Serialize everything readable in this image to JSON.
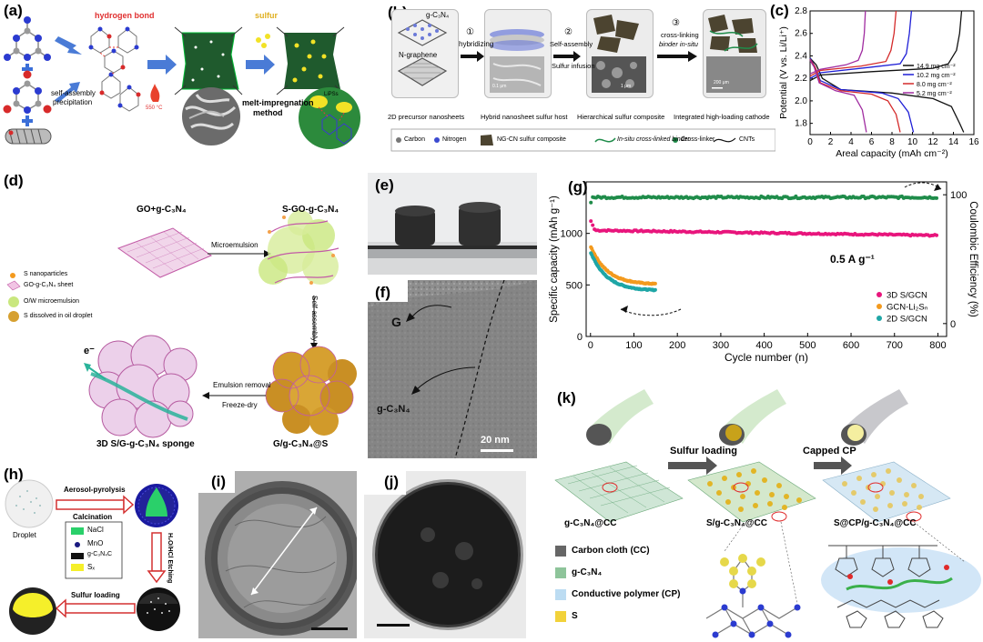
{
  "panels": {
    "a": {
      "label": "(a)",
      "hydrogen_bond": "hydrogen bond",
      "sulfur": "sulfur",
      "self_assembly": "self-assembly",
      "precipitation": "precipitation",
      "temp": "550 °C",
      "melt_impregnation": "melt-impregnation",
      "method": "method",
      "lips": "LiPSs"
    },
    "b": {
      "label": "(b)",
      "gcn": "g-C₃N₄",
      "ngraphene": "N-graphene",
      "step1_num": "①",
      "step1": "hybridizing",
      "step2_num": "②",
      "step2a": "Self-assembly",
      "step2b": "Sulfur infusion",
      "step3_num": "③",
      "step3a": "cross-linking",
      "step3b": "binder in-situ",
      "cap1": "2D precursor nanosheets",
      "cap2": "Hybrid nanosheet sulfur host",
      "cap3": "Hierarchical sulfur composite",
      "cap4": "Integrated high-loading cathode",
      "scale1": "0.1 μm",
      "scale3": "1 μm",
      "scale4": "200 μm",
      "legend": [
        "Carbon",
        "Nitrogen",
        "NG-CN sulfur composite",
        "In-situ cross-linked binder",
        "Cross-linker",
        "CNTs"
      ]
    },
    "d": {
      "label": "(d)",
      "go_gcn": "GO+g-C₃N₄",
      "s_go_gcn": "S-GO-g-C₃N₄",
      "microemulsion": "Microemulsion",
      "self_assembly": "Self-assembly",
      "emulsion_removal": "Emulsion removal",
      "freeze_dry": "Freeze-dry",
      "sponge": "3D S/G-g-C₃N₄ sponge",
      "ggcn_s": "G/g-C₃N₄@S",
      "electron": "e⁻",
      "legend": [
        "S nanoparticles",
        "GO-g-C₃N₄ sheet",
        "O/W microemulsion",
        "S dissolved in oil droplet"
      ]
    },
    "e": {
      "label": "(e)"
    },
    "f": {
      "label": "(f)",
      "g": "G",
      "gcn": "g-C₃N₄",
      "scale": "20 nm"
    },
    "h": {
      "label": "(h)",
      "aerosol": "Aerosol-pyrolysis",
      "calcination": "Calcination",
      "droplet": "Droplet",
      "etching": "H₂O/HCl Etching",
      "sulfur_loading": "Sulfur loading",
      "legend": [
        "NaCl",
        "MnO",
        "g-C₃N₄C",
        "Sₓ"
      ]
    },
    "i": {
      "label": "(i)"
    },
    "j": {
      "label": "(j)"
    },
    "k": {
      "label": "(k)",
      "sulfur_loading": "Sulfur loading",
      "capped_cp": "Capped CP",
      "gcn_cc": "g-C₃N₄@CC",
      "s_gcn_cc": "S/g-C₃N₄@CC",
      "s_cp_gcn_cc": "S@CP/g-C₃N₄@CC",
      "legend": [
        "Carbon cloth (CC)",
        "g-C₃N₄",
        "Conductive polymer (CP)",
        "S"
      ]
    }
  },
  "colors": {
    "pink": "#e8157c",
    "green": "#1f8c4a",
    "orange": "#f39a1e",
    "teal": "#1fa6a6",
    "black": "#111111",
    "blue": "#1f1fd6",
    "red": "#d42a2a",
    "purple": "#a02ca0"
  },
  "chart_data": [
    {
      "id": "c",
      "panel_label": "(c)",
      "type": "line",
      "xlabel": "Areal capacity (mAh cm⁻²)",
      "ylabel": "Potential (V vs. Li/Li⁺)",
      "xlim": [
        0,
        16
      ],
      "ylim": [
        1.7,
        2.8
      ],
      "xticks": [
        "0",
        "2",
        "4",
        "6",
        "8",
        "10",
        "12",
        "14",
        "16"
      ],
      "yticks": [
        "1.8",
        "2.0",
        "2.2",
        "2.4",
        "2.6",
        "2.8"
      ],
      "legend_position": "right",
      "series": [
        {
          "name": "14.9 mg cm⁻²",
          "color": "#111111",
          "charge": [
            [
              0,
              2.18
            ],
            [
              1,
              2.23
            ],
            [
              6,
              2.26
            ],
            [
              12,
              2.29
            ],
            [
              13.5,
              2.33
            ],
            [
              14.3,
              2.45
            ],
            [
              14.6,
              2.6
            ],
            [
              14.8,
              2.8
            ]
          ],
          "discharge": [
            [
              0,
              2.38
            ],
            [
              0.6,
              2.32
            ],
            [
              1.2,
              2.2
            ],
            [
              3,
              2.1
            ],
            [
              8,
              2.07
            ],
            [
              12,
              2.02
            ],
            [
              13.8,
              1.95
            ],
            [
              14.6,
              1.8
            ],
            [
              15,
              1.72
            ]
          ]
        },
        {
          "name": "10.2 mg cm⁻²",
          "color": "#1f1fd6",
          "charge": [
            [
              0,
              2.2
            ],
            [
              1,
              2.25
            ],
            [
              6,
              2.3
            ],
            [
              8.8,
              2.33
            ],
            [
              9.4,
              2.42
            ],
            [
              9.7,
              2.6
            ],
            [
              9.9,
              2.8
            ]
          ],
          "discharge": [
            [
              0,
              2.38
            ],
            [
              0.5,
              2.3
            ],
            [
              1,
              2.18
            ],
            [
              3,
              2.1
            ],
            [
              7,
              2.07
            ],
            [
              8.6,
              2.02
            ],
            [
              9.6,
              1.9
            ],
            [
              10.1,
              1.72
            ]
          ]
        },
        {
          "name": "8.0 mg cm⁻²",
          "color": "#d42a2a",
          "charge": [
            [
              0,
              2.22
            ],
            [
              1,
              2.27
            ],
            [
              5,
              2.31
            ],
            [
              7.4,
              2.35
            ],
            [
              7.9,
              2.45
            ],
            [
              8.2,
              2.6
            ],
            [
              8.4,
              2.8
            ]
          ],
          "discharge": [
            [
              0,
              2.37
            ],
            [
              0.5,
              2.3
            ],
            [
              1,
              2.16
            ],
            [
              3,
              2.09
            ],
            [
              6,
              2.06
            ],
            [
              7.6,
              2.0
            ],
            [
              8.4,
              1.88
            ],
            [
              8.8,
              1.72
            ]
          ]
        },
        {
          "name": "5.2 mg cm⁻²",
          "color": "#a02ca0",
          "charge": [
            [
              0,
              2.24
            ],
            [
              1,
              2.28
            ],
            [
              3.5,
              2.32
            ],
            [
              4.7,
              2.36
            ],
            [
              5.1,
              2.45
            ],
            [
              5.3,
              2.6
            ],
            [
              5.4,
              2.8
            ]
          ],
          "discharge": [
            [
              0,
              2.36
            ],
            [
              0.4,
              2.3
            ],
            [
              0.9,
              2.16
            ],
            [
              2.5,
              2.09
            ],
            [
              4.3,
              2.05
            ],
            [
              5.1,
              1.92
            ],
            [
              5.5,
              1.72
            ]
          ]
        }
      ]
    },
    {
      "id": "g",
      "panel_label": "(g)",
      "type": "scatter",
      "xlabel": "Cycle number (n)",
      "ylabel": "Specific capacity (mAh g⁻¹)",
      "y2label": "Coulombic Efficiency (%)",
      "xlim": [
        -10,
        820
      ],
      "ylim": [
        0,
        1500
      ],
      "y2lim": [
        -10,
        110
      ],
      "xticks": [
        "0",
        "100",
        "200",
        "300",
        "400",
        "500",
        "600",
        "700",
        "800"
      ],
      "yticks": [
        "0",
        "500",
        "1000"
      ],
      "y2ticks": [
        "0",
        "100"
      ],
      "annotation": "0.5 A g⁻¹",
      "legend_position": "bottom-right",
      "series": [
        {
          "name": "3D S/GCN",
          "color": "#e8157c",
          "cycles": 800,
          "start": 1130,
          "level": 1030,
          "end": 980
        },
        {
          "name": "GCN-Li₂Sₙ",
          "color": "#f39a1e",
          "cycles": 150,
          "start": 880,
          "level": 620,
          "end": 510
        },
        {
          "name": "2D S/GCN",
          "color": "#1fa6a6",
          "cycles": 150,
          "start": 820,
          "level": 560,
          "end": 450
        },
        {
          "name": "",
          "color": "#1f8c4a",
          "cycles": 800,
          "axis": "y2",
          "level": 98
        }
      ]
    }
  ]
}
